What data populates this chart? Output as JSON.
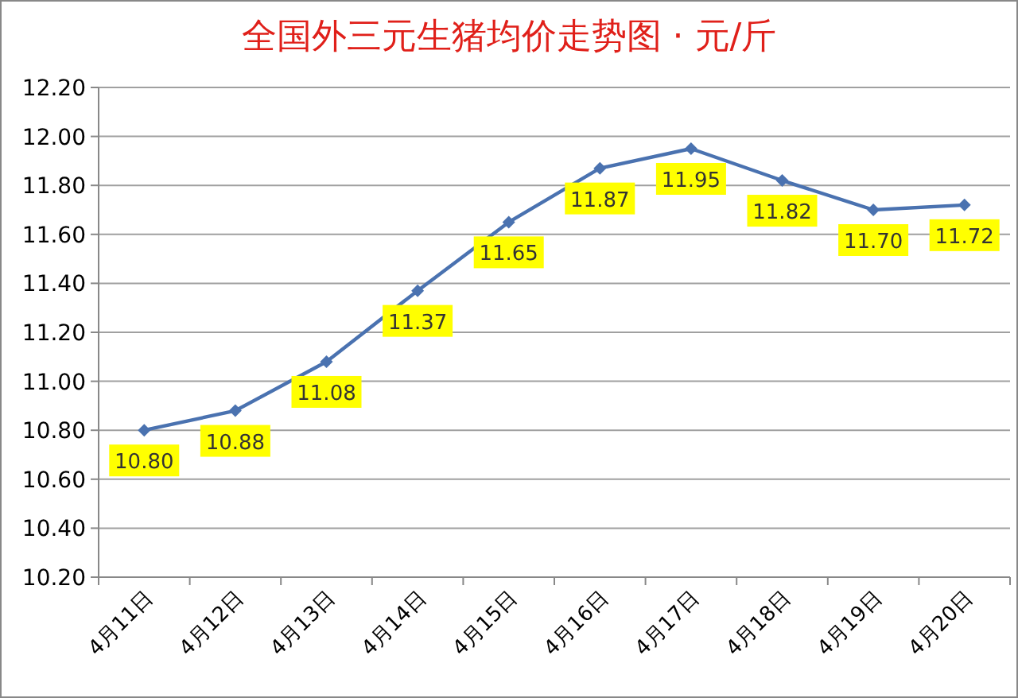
{
  "chart_data": {
    "type": "line",
    "title": "全国外三元生猪均价走势图 · 元/斤",
    "categories": [
      "4月11日",
      "4月12日",
      "4月13日",
      "4月14日",
      "4月15日",
      "4月16日",
      "4月17日",
      "4月18日",
      "4月19日",
      "4月20日"
    ],
    "values": [
      10.8,
      10.88,
      11.08,
      11.37,
      11.65,
      11.87,
      11.95,
      11.82,
      11.7,
      11.72
    ],
    "value_labels": [
      "10.80",
      "10.88",
      "11.08",
      "11.37",
      "11.65",
      "11.87",
      "11.95",
      "11.82",
      "11.70",
      "11.72"
    ],
    "color": "#4a72b0",
    "marker": "diamond",
    "grid": "y",
    "ylim": [
      10.2,
      12.2
    ],
    "yticks": [
      {
        "value": 10.2,
        "label": "10.20"
      },
      {
        "value": 10.4,
        "label": "10.40"
      },
      {
        "value": 10.6,
        "label": "10.60"
      },
      {
        "value": 10.8,
        "label": "10.80"
      },
      {
        "value": 11.0,
        "label": "11.00"
      },
      {
        "value": 11.2,
        "label": "11.20"
      },
      {
        "value": 11.4,
        "label": "11.40"
      },
      {
        "value": 11.6,
        "label": "11.60"
      },
      {
        "value": 11.8,
        "label": "11.80"
      },
      {
        "value": 12.0,
        "label": "12.00"
      },
      {
        "value": 12.2,
        "label": "12.20"
      }
    ]
  }
}
